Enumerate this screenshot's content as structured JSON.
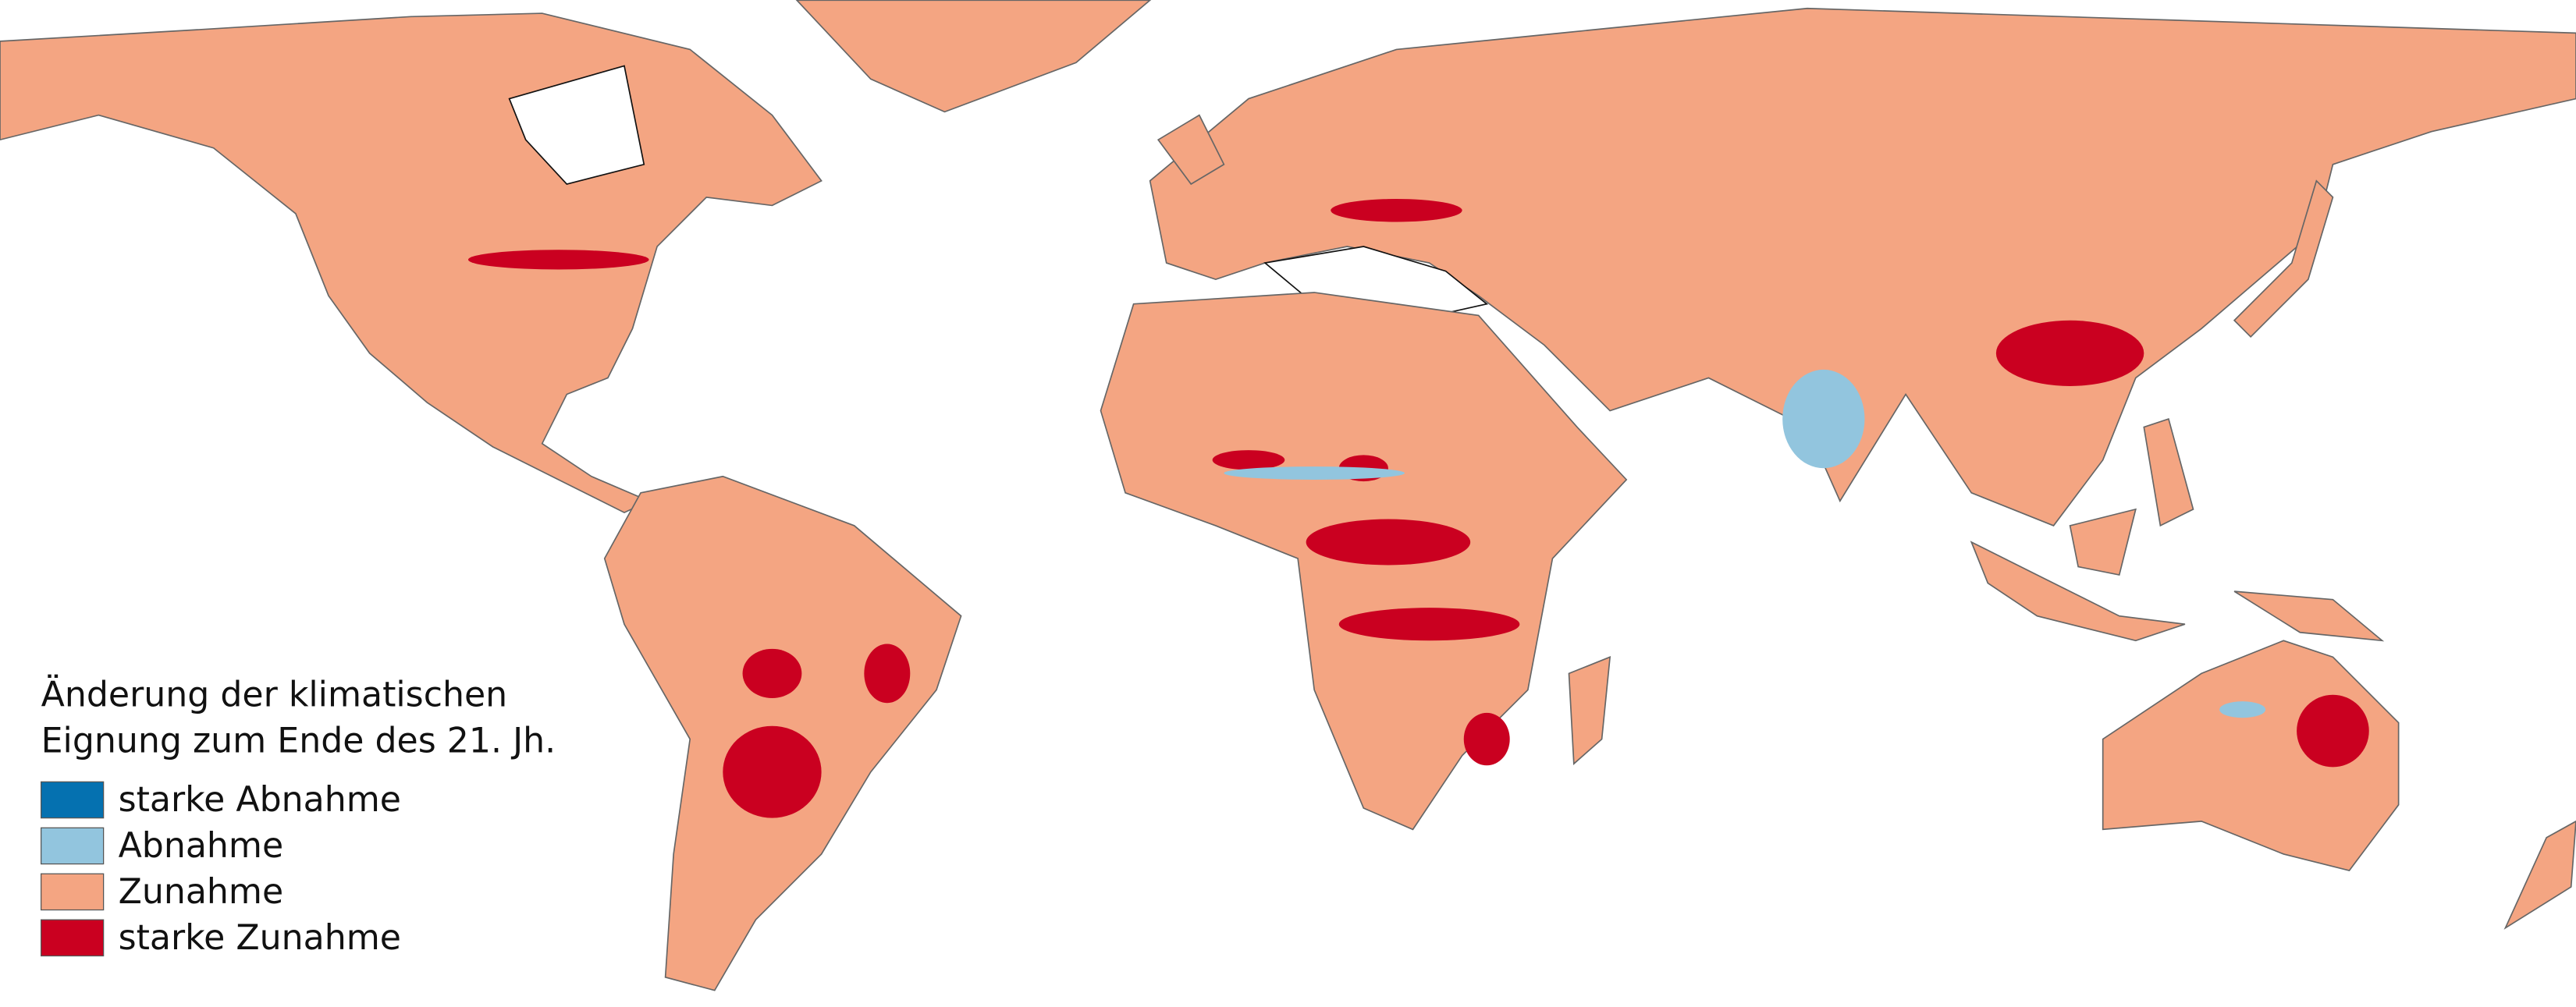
{
  "legend": {
    "title_lines": [
      "Änderung der klimatischen",
      "Eignung zum Ende des 21. Jh."
    ],
    "items": [
      {
        "label": "starke Abnahme",
        "color": "#0571b0"
      },
      {
        "label": "Abnahme",
        "color": "#92c5de"
      },
      {
        "label": "Zunahme",
        "color": "#f4a582"
      },
      {
        "label": "starke Zunahme",
        "color": "#ca0020"
      }
    ]
  }
}
